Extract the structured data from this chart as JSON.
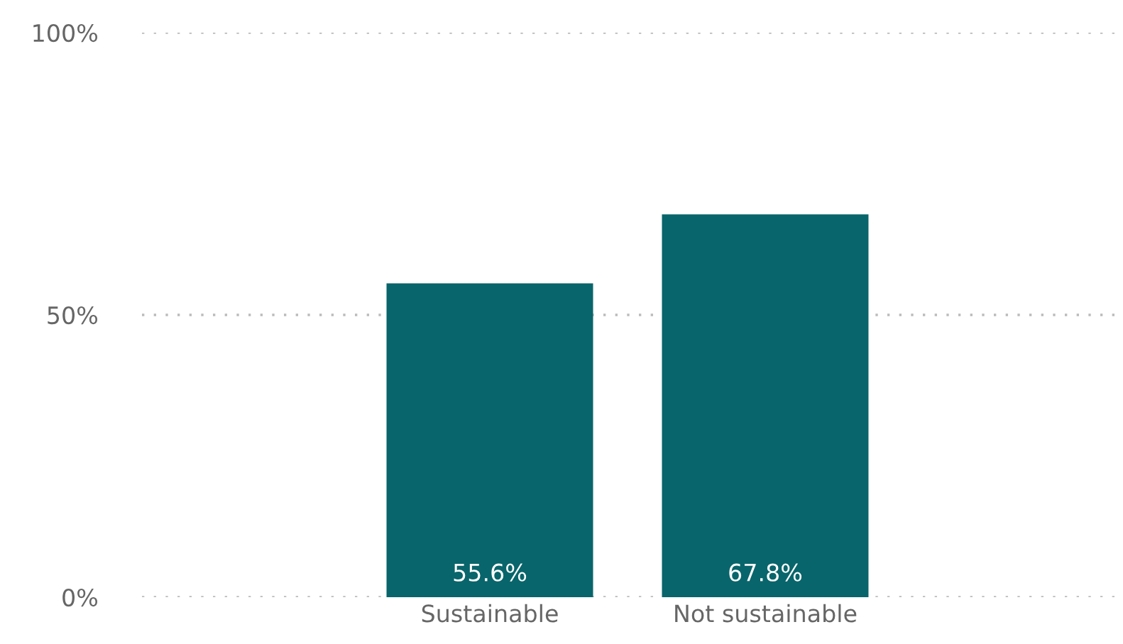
{
  "chart_data": {
    "type": "bar",
    "categories": [
      "Sustainable",
      "Not sustainable"
    ],
    "values": [
      55.6,
      67.8
    ],
    "color": "#08656b",
    "value_labels": [
      "55.6%",
      "67.8%"
    ],
    "ylim": [
      0,
      100
    ],
    "yticks": [
      {
        "value": 0,
        "label": "0%"
      },
      {
        "value": 50,
        "label": "50%"
      },
      {
        "value": 100,
        "label": "100%"
      }
    ],
    "grid": "y"
  }
}
